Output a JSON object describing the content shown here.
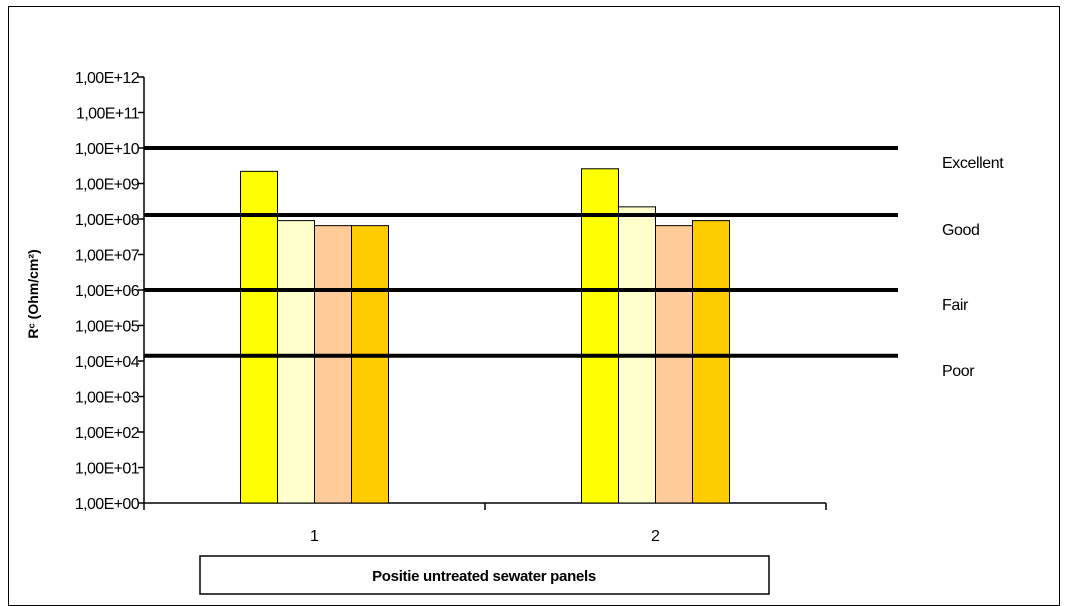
{
  "chart_data": {
    "type": "bar",
    "scale": "log",
    "ylabel": "Rᶜ (Ohm/cm²)",
    "xlabel": "Positie untreated sewater panels",
    "ylim": [
      1,
      1000000000000.0
    ],
    "y_tick_labels": [
      "1,00E+00",
      "1,00E+01",
      "1,00E+02",
      "1,00E+03",
      "1,00E+04",
      "1,00E+05",
      "1,00E+06",
      "1,00E+07",
      "1,00E+08",
      "1,00E+09",
      "1,00E+10",
      "1,00E+11",
      "1,00E+12"
    ],
    "categories": [
      "1",
      "2"
    ],
    "series": [
      {
        "color": "#FFFF00",
        "values": [
          2200000000.0,
          2600000000.0
        ]
      },
      {
        "color": "#FFFFCC",
        "values": [
          90000000.0,
          220000000.0
        ]
      },
      {
        "color": "#FFCC99",
        "values": [
          65000000.0,
          65000000.0
        ]
      },
      {
        "color": "#FFCC00",
        "values": [
          65000000.0,
          90000000.0
        ]
      }
    ],
    "thresholds": [
      {
        "value": 10000000000.0,
        "label": "Excellent"
      },
      {
        "value": 130000000.0,
        "label": "Good"
      },
      {
        "value": 1000000.0,
        "label": "Fair"
      },
      {
        "value": 14000.0,
        "label": "Poor"
      }
    ],
    "grid": false,
    "legend": "none"
  }
}
